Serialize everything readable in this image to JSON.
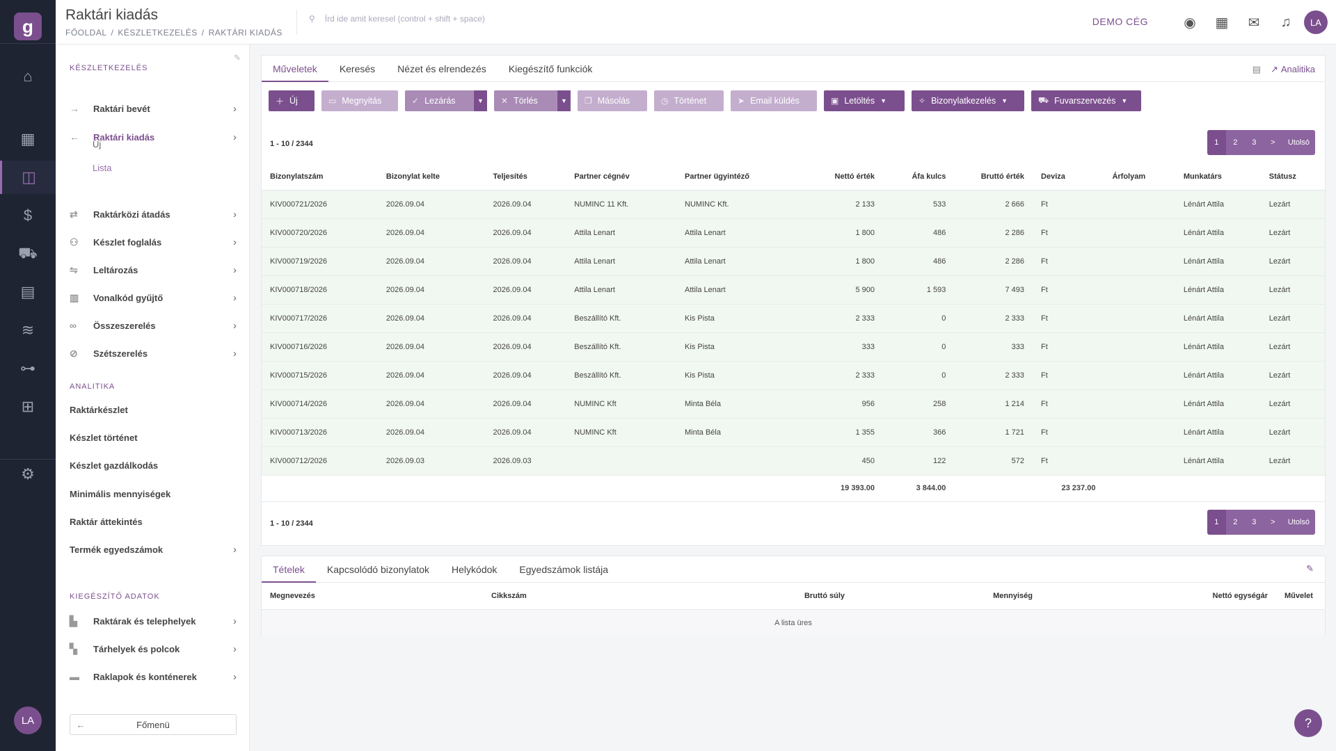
{
  "app": {
    "logo": "g",
    "rail_avatar": "LA"
  },
  "rail": [
    {
      "icon": "home-icon",
      "glyph": "⌂"
    },
    {
      "icon": "dashboard-icon",
      "glyph": "▦"
    },
    {
      "icon": "inventory-icon",
      "glyph": "◫"
    },
    {
      "icon": "finance-icon",
      "glyph": "$"
    },
    {
      "icon": "truck-icon",
      "glyph": "⛟"
    },
    {
      "icon": "register-icon",
      "glyph": "▤"
    },
    {
      "icon": "database-icon",
      "glyph": "≋"
    },
    {
      "icon": "flow-icon",
      "glyph": "⊶"
    },
    {
      "icon": "structure-icon",
      "glyph": "⊞"
    },
    {
      "icon": "settings-icon",
      "glyph": "⚙"
    }
  ],
  "header": {
    "title": "Raktári kiadás",
    "breadcrumb": [
      "FŐOLDAL",
      "KÉSZLETKEZELÉS",
      "RAKTÁRI KIADÁS"
    ],
    "search_placeholder": "Írd ide amit keresel (control + shift + space)",
    "company": "DEMO CÉG",
    "avatar": "LA"
  },
  "sidebar": {
    "section1": "KÉSZLETKEZELÉS",
    "items": [
      {
        "label": "Raktári bevét",
        "icon": "→"
      },
      {
        "label": "Raktári kiadás",
        "icon": "←"
      },
      {
        "label": "Raktárközi átadás",
        "icon": "⇄"
      },
      {
        "label": "Készlet foglalás",
        "icon": "⚇"
      },
      {
        "label": "Leltározás",
        "icon": "⇋"
      },
      {
        "label": "Vonalkód gyűjtő",
        "icon": "▥"
      },
      {
        "label": "Összeszerelés",
        "icon": "∞"
      },
      {
        "label": "Szétszerelés",
        "icon": "⊘"
      }
    ],
    "subitems": [
      "Új",
      "Lista"
    ],
    "section2": "ANALITIKA",
    "analytics": [
      "Raktárkészlet",
      "Készlet történet",
      "Készlet gazdálkodás",
      "Minimális mennyiségek",
      "Raktár áttekintés",
      "Termék egyedszámok"
    ],
    "section3": "KIEGÉSZÍTŐ ADATOK",
    "extra": [
      {
        "label": "Raktárak és telephelyek",
        "icon": "▙"
      },
      {
        "label": "Tárhelyek és polcok",
        "icon": "▚"
      },
      {
        "label": "Raklapok és konténerek",
        "icon": "▬"
      }
    ],
    "back": "Főmenü"
  },
  "main": {
    "tabs": [
      "Műveletek",
      "Keresés",
      "Nézet és elrendezés",
      "Kiegészítő funkciók"
    ],
    "analytics_link": "Analitika",
    "buttons": {
      "new": "Új",
      "open": "Megnyitás",
      "close": "Lezárás",
      "delete": "Törlés",
      "copy": "Másolás",
      "history": "Történet",
      "email": "Email küldés",
      "download": "Letöltés",
      "docs": "Bizonylatkezelés",
      "freight": "Fuvarszervezés"
    },
    "count": "1 - 10 / 2344",
    "pager": [
      "1",
      "2",
      "3",
      ">",
      "Utolsó"
    ],
    "columns": [
      "Bizonylatszám",
      "Bizonylat kelte",
      "Teljesítés",
      "Partner cégnév",
      "Partner ügyintéző",
      "Nettó érték",
      "Áfa kulcs",
      "Bruttó érték",
      "Deviza",
      "Árfolyam",
      "Munkatárs",
      "Státusz"
    ],
    "rows": [
      [
        "KIV000721/2026",
        "2026.09.04",
        "2026.09.04",
        "NUMINC 11 Kft.",
        "NUMINC Kft.",
        "2 133",
        "533",
        "2 666",
        "Ft",
        "",
        "Lénárt Attila",
        "Lezárt"
      ],
      [
        "KIV000720/2026",
        "2026.09.04",
        "2026.09.04",
        "Attila Lenart",
        "Attila Lenart",
        "1 800",
        "486",
        "2 286",
        "Ft",
        "",
        "Lénárt Attila",
        "Lezárt"
      ],
      [
        "KIV000719/2026",
        "2026.09.04",
        "2026.09.04",
        "Attila Lenart",
        "Attila Lenart",
        "1 800",
        "486",
        "2 286",
        "Ft",
        "",
        "Lénárt Attila",
        "Lezárt"
      ],
      [
        "KIV000718/2026",
        "2026.09.04",
        "2026.09.04",
        "Attila Lenart",
        "Attila Lenart",
        "5 900",
        "1 593",
        "7 493",
        "Ft",
        "",
        "Lénárt Attila",
        "Lezárt"
      ],
      [
        "KIV000717/2026",
        "2026.09.04",
        "2026.09.04",
        "Beszállító Kft.",
        "Kis Pista",
        "2 333",
        "0",
        "2 333",
        "Ft",
        "",
        "Lénárt Attila",
        "Lezárt"
      ],
      [
        "KIV000716/2026",
        "2026.09.04",
        "2026.09.04",
        "Beszállító Kft.",
        "Kis Pista",
        "333",
        "0",
        "333",
        "Ft",
        "",
        "Lénárt Attila",
        "Lezárt"
      ],
      [
        "KIV000715/2026",
        "2026.09.04",
        "2026.09.04",
        "Beszállító Kft.",
        "Kis Pista",
        "2 333",
        "0",
        "2 333",
        "Ft",
        "",
        "Lénárt Attila",
        "Lezárt"
      ],
      [
        "KIV000714/2026",
        "2026.09.04",
        "2026.09.04",
        "NUMINC Kft",
        "Minta Béla",
        "956",
        "258",
        "1 214",
        "Ft",
        "",
        "Lénárt Attila",
        "Lezárt"
      ],
      [
        "KIV000713/2026",
        "2026.09.04",
        "2026.09.04",
        "NUMINC Kft",
        "Minta Béla",
        "1 355",
        "366",
        "1 721",
        "Ft",
        "",
        "Lénárt Attila",
        "Lezárt"
      ],
      [
        "KIV000712/2026",
        "2026.09.03",
        "2026.09.03",
        "",
        "",
        "450",
        "122",
        "572",
        "Ft",
        "",
        "Lénárt Attila",
        "Lezárt"
      ]
    ],
    "totals": {
      "net": "19 393.00",
      "vat": "3 844.00",
      "gross": "23 237.00"
    }
  },
  "detail": {
    "tabs": [
      "Tételek",
      "Kapcsolódó bizonylatok",
      "Helykódok",
      "Egyedszámok listája"
    ],
    "columns": [
      "Megnevezés",
      "Cikkszám",
      "Bruttó súly",
      "Mennyiség",
      "Nettó egységár",
      "Művelet"
    ],
    "empty": "A lista üres"
  },
  "help": "?"
}
